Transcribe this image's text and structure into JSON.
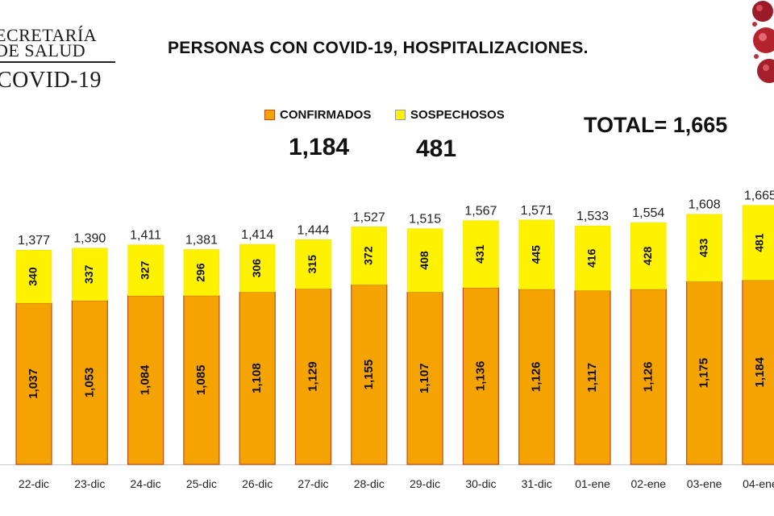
{
  "logo": {
    "line1": "ECRETARÍA",
    "line2": "DE SALUD",
    "line3": "COVID-19"
  },
  "header": {
    "title": "PERSONAS CON COVID-19, HOSPITALIZACIONES.",
    "confirmados_label": "CONFIRMADOS",
    "sospechosos_label": "SOSPECHOSOS",
    "confirmados_value": "1,184",
    "sospechosos_value": "481",
    "total_text": "TOTAL= 1,665"
  },
  "colors": {
    "confirmados": "#f5a300",
    "confirmados_edge": "#c44a1a",
    "sospechosos": "#fff200",
    "text": "#111111"
  },
  "chart_data": {
    "type": "bar",
    "stacked": true,
    "title": "PERSONAS CON COVID-19, HOSPITALIZACIONES.",
    "categories": [
      "22-dic",
      "23-dic",
      "24-dic",
      "25-dic",
      "26-dic",
      "27-dic",
      "28-dic",
      "29-dic",
      "30-dic",
      "31-dic",
      "01-ene",
      "02-ene",
      "03-ene",
      "04-ene"
    ],
    "series": [
      {
        "name": "CONFIRMADOS",
        "values": [
          1037,
          1053,
          1084,
          1085,
          1108,
          1129,
          1155,
          1107,
          1136,
          1126,
          1117,
          1126,
          1175,
          1184
        ]
      },
      {
        "name": "SOSPECHOSOS",
        "values": [
          340,
          337,
          327,
          296,
          306,
          315,
          372,
          408,
          431,
          445,
          416,
          428,
          433,
          481
        ]
      }
    ],
    "totals": [
      "1,377",
      "1,390",
      "1,411",
      "1,381",
      "1,414",
      "1,444",
      "1,527",
      "1,515",
      "1,567",
      "1,571",
      "1,533",
      "1,554",
      "1,608",
      "1,665"
    ],
    "confirmados_labels": [
      "1,037",
      "1,053",
      "1,084",
      "1,085",
      "1,108",
      "1,129",
      "1,155",
      "1,107",
      "1,136",
      "1,126",
      "1,117",
      "1,126",
      "1,175",
      "1,184"
    ],
    "sospechosos_labels": [
      "340",
      "337",
      "327",
      "296",
      "306",
      "315",
      "372",
      "408",
      "431",
      "445",
      "416",
      "428",
      "433",
      "481"
    ],
    "legend_position": "top",
    "grid": false
  }
}
